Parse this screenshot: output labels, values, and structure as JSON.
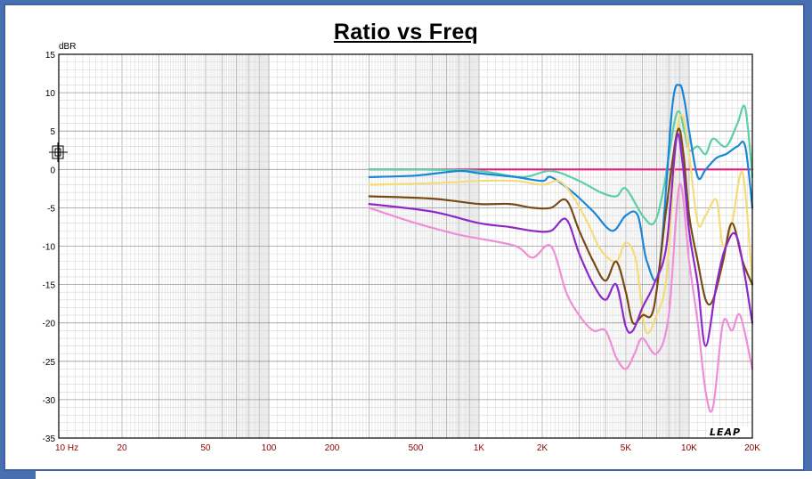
{
  "chart_data": {
    "type": "line",
    "title": "Ratio vs Freq",
    "ylabel": "dBR",
    "xscale": "log",
    "xlim": [
      10,
      20000
    ],
    "ylim": [
      -35,
      15
    ],
    "grid": true,
    "yticks": [
      15,
      10,
      5,
      0,
      -5,
      -10,
      -15,
      -20,
      -25,
      -30,
      -35
    ],
    "xticks": [
      {
        "v": 10,
        "label": "10 Hz"
      },
      {
        "v": 20,
        "label": "20"
      },
      {
        "v": 50,
        "label": "50"
      },
      {
        "v": 100,
        "label": "100"
      },
      {
        "v": 200,
        "label": "200"
      },
      {
        "v": 500,
        "label": "500"
      },
      {
        "v": 1000,
        "label": "1K"
      },
      {
        "v": 2000,
        "label": "2K"
      },
      {
        "v": 5000,
        "label": "5K"
      },
      {
        "v": 10000,
        "label": "10K"
      },
      {
        "v": 20000,
        "label": "20K"
      }
    ],
    "series": [
      {
        "color": "#e0207f",
        "x": [
          300,
          20000
        ],
        "y": [
          0,
          0
        ]
      },
      {
        "color": "#5ccfa8",
        "x": [
          300,
          500,
          1000,
          1600,
          2200,
          3000,
          3800,
          4500,
          5000,
          6000,
          6800,
          7500,
          8500,
          9000,
          9500,
          10000,
          11000,
          12000,
          13000,
          15000,
          17000,
          18500,
          20000
        ],
        "y": [
          0,
          0,
          -0.2,
          -1,
          -0.2,
          -1.5,
          -3,
          -3.5,
          -2.5,
          -6,
          -7,
          -3,
          6,
          7.5,
          5,
          2.5,
          3,
          2,
          4,
          3,
          6,
          8,
          -1
        ]
      },
      {
        "color": "#1a86d8",
        "x": [
          300,
          500,
          800,
          1000,
          1500,
          2000,
          2200,
          2800,
          3500,
          4300,
          5000,
          5700,
          6300,
          7200,
          8300,
          9000,
          9500,
          10000,
          11000,
          12000,
          13500,
          15000,
          17000,
          18500,
          20000
        ],
        "y": [
          -1,
          -0.8,
          -0.2,
          -0.5,
          -1,
          -1.5,
          -1,
          -3,
          -5.5,
          -8,
          -6,
          -6,
          -12,
          -13,
          8,
          11,
          9,
          5,
          -1,
          0,
          1.5,
          2,
          3,
          3,
          -5
        ]
      },
      {
        "color": "#f5dc7a",
        "x": [
          300,
          600,
          1000,
          1500,
          2000,
          2400,
          2800,
          3300,
          3800,
          4500,
          5000,
          5600,
          6200,
          7000,
          7800,
          8700,
          9300,
          10000,
          11000,
          12000,
          13500,
          14500,
          16000,
          18000,
          20000
        ],
        "y": [
          -2,
          -1.8,
          -1.5,
          -1.5,
          -2,
          -1.5,
          -3.5,
          -7,
          -10.5,
          -12,
          -9.5,
          -12,
          -21,
          -19,
          -14,
          4,
          7,
          2,
          -7,
          -6,
          -4,
          -10,
          -7,
          -0.5,
          -15
        ]
      },
      {
        "color": "#7a4a14",
        "x": [
          300,
          600,
          1000,
          1400,
          1800,
          2200,
          2600,
          3000,
          3500,
          4000,
          4500,
          5000,
          5400,
          6000,
          6800,
          7800,
          8800,
          9400,
          10000,
          11000,
          12000,
          13000,
          14500,
          16000,
          18000,
          20000
        ],
        "y": [
          -3.5,
          -3.8,
          -4.5,
          -4.5,
          -5,
          -5,
          -4,
          -8,
          -12,
          -14.5,
          -12,
          -16,
          -20,
          -19,
          -18,
          -5,
          5,
          2,
          -6,
          -12,
          -17,
          -17,
          -12,
          -7,
          -12,
          -15
        ]
      },
      {
        "color": "#8e28c8",
        "x": [
          300,
          600,
          1000,
          1400,
          1800,
          2200,
          2600,
          3000,
          3500,
          4000,
          4500,
          5000,
          5400,
          6000,
          6800,
          7800,
          8700,
          9300,
          10000,
          11000,
          12000,
          13500,
          15000,
          17000,
          20000
        ],
        "y": [
          -4.5,
          -5.5,
          -7,
          -7.5,
          -8,
          -8,
          -6.5,
          -11,
          -15,
          -17,
          -15,
          -20.5,
          -21,
          -18,
          -15,
          -10,
          4,
          1,
          -8,
          -15,
          -23,
          -15,
          -10,
          -9,
          -20
        ]
      },
      {
        "color": "#ef8ed8",
        "x": [
          300,
          500,
          800,
          1000,
          1500,
          1800,
          2200,
          2600,
          3000,
          3500,
          4000,
          4500,
          5000,
          5500,
          6000,
          7000,
          8000,
          9000,
          10000,
          11000,
          12000,
          13000,
          14500,
          16000,
          17500,
          20000
        ],
        "y": [
          -5,
          -7,
          -8.5,
          -9,
          -10,
          -11.5,
          -10,
          -16,
          -19,
          -21,
          -21,
          -24.5,
          -26,
          -24,
          -22,
          -24,
          -19,
          -2,
          -12,
          -20,
          -29,
          -31,
          -20,
          -21,
          -19,
          -26
        ]
      }
    ]
  },
  "logo_text": "LEAP",
  "cursor_icon": "crosshair-cursor-icon"
}
